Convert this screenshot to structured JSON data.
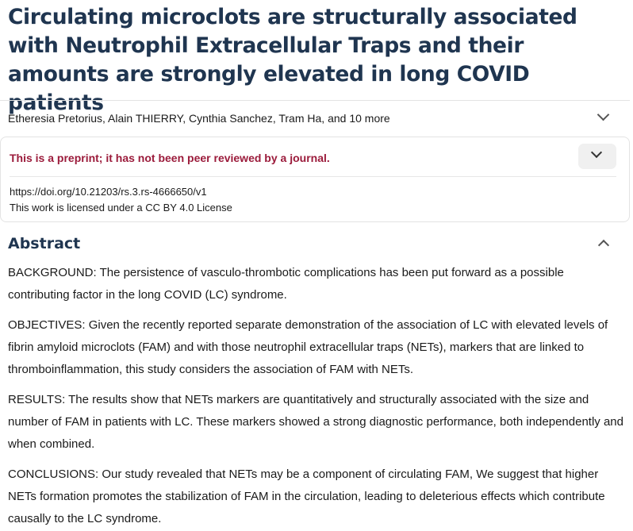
{
  "article": {
    "title": "Circulating microclots are structurally associated with Neutrophil Extracellular Traps and their amounts are strongly elevated in long COVID patients",
    "authors": "Etheresia Pretorius, Alain THIERRY, Cynthia Sanchez, Tram Ha, and 10 more",
    "preprint_notice": "This is a preprint; it has not been peer reviewed by a journal.",
    "doi": "https://doi.org/10.21203/rs.3.rs-4666650/v1",
    "license": "This work is licensed under a CC BY 4.0 License"
  },
  "abstract": {
    "heading": "Abstract",
    "paragraphs": [
      "BACKGROUND: The persistence of vasculo-thrombotic complications has been put forward as a possible contributing factor in the long COVID (LC) syndrome.",
      "OBJECTIVES: Given the recently reported separate demonstration of the association of LC with elevated levels of fibrin amyloid microclots (FAM) and with those neutrophil extracellular traps (NETs), markers that are linked to thromboinflammation, this study considers the association of FAM with NETs.",
      "RESULTS: The results show that NETs markers are quantitatively and structurally associated with the size and number of FAM in patients with LC. These markers showed a strong diagnostic performance, both independently and when combined.",
      "CONCLUSIONS: Our study revealed that NETs may be a component of circulating FAM, We suggest that higher NETs formation promotes the stabilization of FAM in the circulation, leading to deleterious effects which contribute causally to the LC syndrome."
    ]
  },
  "icons": {
    "authors_toggle": "chevron-down-icon",
    "preprint_toggle": "chevron-down-icon",
    "abstract_toggle": "chevron-up-icon"
  },
  "colors": {
    "title": "#1f3550",
    "preprint_notice": "#9b1b3b"
  }
}
